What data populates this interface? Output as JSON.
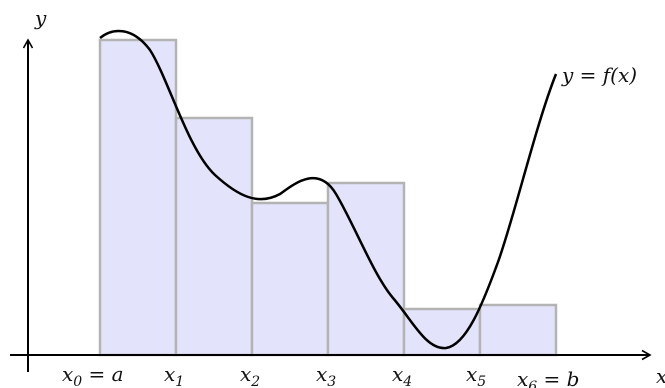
{
  "labels": {
    "y_axis": "y",
    "x_axis": "x",
    "curve_prefix": "y = ",
    "curve_func": "f(x)"
  },
  "ticks": [
    {
      "base": "x",
      "sub": "0",
      "suffix": " = a"
    },
    {
      "base": "x",
      "sub": "1",
      "suffix": ""
    },
    {
      "base": "x",
      "sub": "2",
      "suffix": ""
    },
    {
      "base": "x",
      "sub": "3",
      "suffix": ""
    },
    {
      "base": "x",
      "sub": "4",
      "suffix": ""
    },
    {
      "base": "x",
      "sub": "5",
      "suffix": ""
    },
    {
      "base": "x",
      "sub": "6",
      "suffix": " = b"
    }
  ],
  "colors": {
    "rect_fill": "#e3e4fb",
    "rect_stroke": "#b3b3b3",
    "curve": "#000000",
    "axis": "#000000"
  }
}
